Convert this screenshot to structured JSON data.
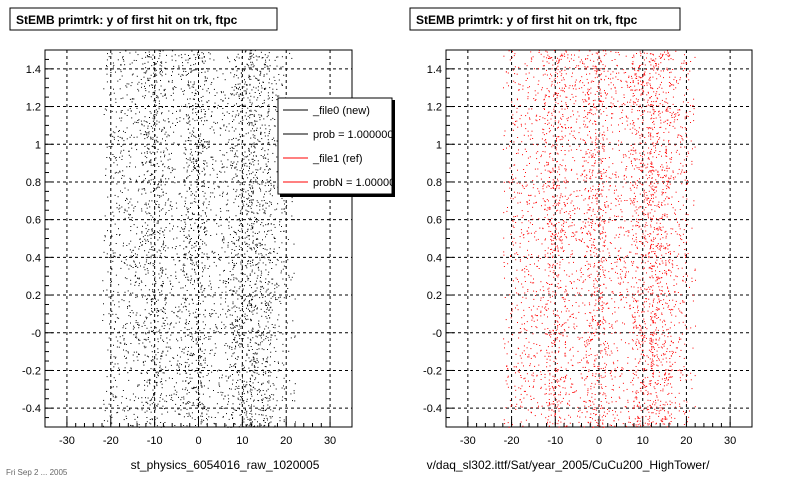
{
  "footnote": "Fri Sep 2 ... 2005",
  "chart_data": [
    {
      "type": "scatter",
      "title": "StEMB primtrk: y of first hit on trk, ftpc",
      "xlabel": "st_physics_6054016_raw_1020005",
      "ylabel": "",
      "xlim": [
        -35,
        35
      ],
      "ylim": [
        -0.5,
        1.5
      ],
      "x_ticks": [
        -30,
        -20,
        -10,
        0,
        10,
        20,
        30
      ],
      "x_tick_labels": [
        "-30",
        "-20",
        "-10",
        "0",
        "10",
        "20",
        "30"
      ],
      "y_ticks": [
        -0.4,
        -0.2,
        0,
        0.2,
        0.4,
        0.6,
        0.8,
        1,
        1.2,
        1.4
      ],
      "y_tick_labels": [
        "-0.4",
        "-0.2",
        "-0",
        "0.2",
        "0.4",
        "0.6",
        "0.8",
        "1",
        "1.2",
        "1.4"
      ],
      "grid": true,
      "point_color": "#000000",
      "series": [
        {
          "name": "_file0 (new)",
          "color": "#000000",
          "x_range": [
            -22,
            22
          ],
          "y_range": [
            -0.5,
            1.5
          ],
          "bands_x": [
            -10,
            -1,
            10,
            14
          ]
        }
      ],
      "legend": {
        "placement": "top-right",
        "entries": [
          {
            "label": "_file0 (new)",
            "color": "#000000"
          },
          {
            "label": "prob = 1.000000",
            "color": "#000000"
          },
          {
            "label": "_file1 (ref)",
            "color": "#ff0000"
          },
          {
            "label": "probN = 1.000000",
            "color": "#ff0000"
          }
        ]
      }
    },
    {
      "type": "scatter",
      "title": "StEMB primtrk: y of first hit on trk, ftpc",
      "xlabel": "v/daq_sl302.ittf/Sat/year_2005/CuCu200_HighTower/",
      "ylabel": "",
      "xlim": [
        -35,
        35
      ],
      "ylim": [
        -0.5,
        1.5
      ],
      "x_ticks": [
        -30,
        -20,
        -10,
        0,
        10,
        20,
        30
      ],
      "x_tick_labels": [
        "-30",
        "-20",
        "-10",
        "0",
        "10",
        "20",
        "30"
      ],
      "y_ticks": [
        -0.4,
        -0.2,
        0,
        0.2,
        0.4,
        0.6,
        0.8,
        1,
        1.2,
        1.4
      ],
      "y_tick_labels": [
        "-0.4",
        "-0.2",
        "-0",
        "0.2",
        "0.4",
        "0.6",
        "0.8",
        "1",
        "1.2",
        "1.4"
      ],
      "grid": true,
      "point_color": "#ff0000",
      "series": [
        {
          "name": "_file1 (ref)",
          "color": "#ff0000",
          "x_range": [
            -22,
            22
          ],
          "y_range": [
            -0.5,
            1.5
          ],
          "bands_x": [
            -10,
            -1,
            10,
            14
          ]
        }
      ]
    }
  ]
}
